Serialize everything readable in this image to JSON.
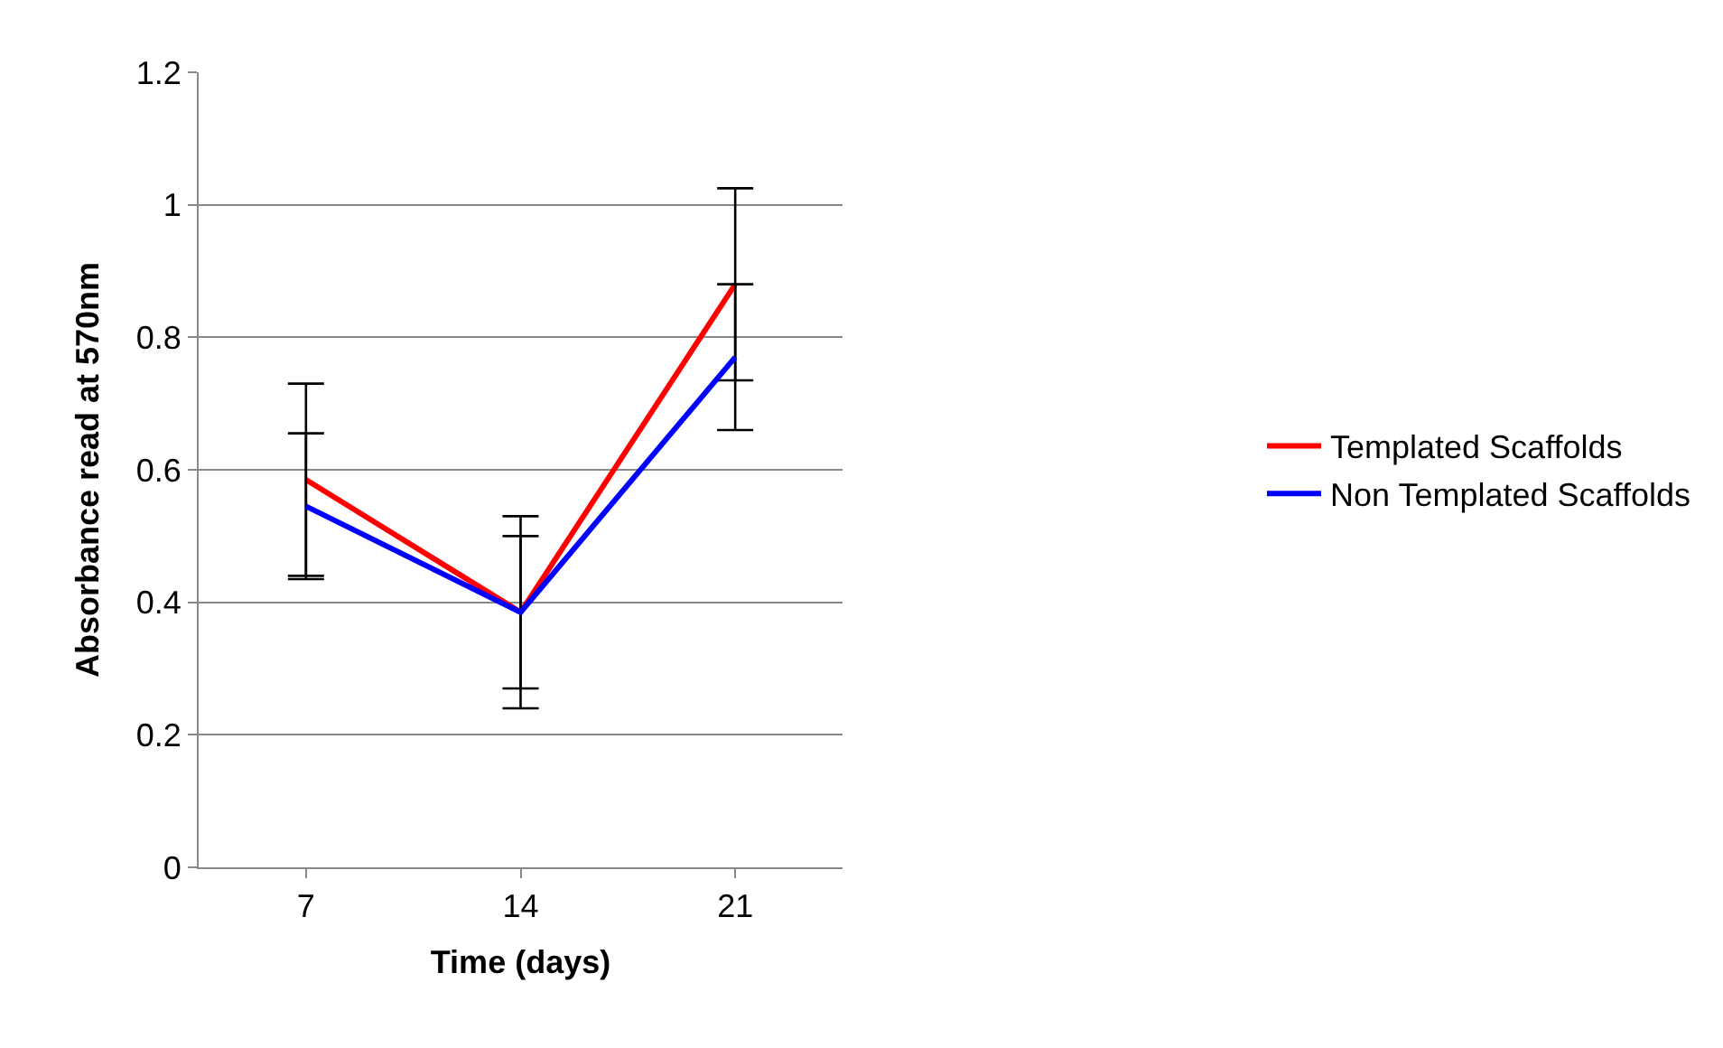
{
  "chart_data": {
    "type": "line",
    "xlabel": "Time (days)",
    "ylabel": "Absorbance read at 570nm",
    "categories": [
      "7",
      "14",
      "21"
    ],
    "series": [
      {
        "name": "Templated Scaffolds",
        "color": "#ff0000",
        "values": [
          0.585,
          0.385,
          0.88
        ],
        "errors": [
          0.145,
          0.145,
          0.145
        ]
      },
      {
        "name": "Non Templated Scaffolds",
        "color": "#0000ff",
        "values": [
          0.545,
          0.385,
          0.77
        ],
        "errors": [
          0.11,
          0.115,
          0.11
        ]
      }
    ],
    "ylim": [
      0,
      1.2
    ],
    "yticks": [
      0,
      0.2,
      0.4,
      0.6,
      0.8,
      1,
      1.2
    ],
    "grid": "y",
    "legend": "right",
    "marker": "none",
    "line_style": "solid"
  }
}
